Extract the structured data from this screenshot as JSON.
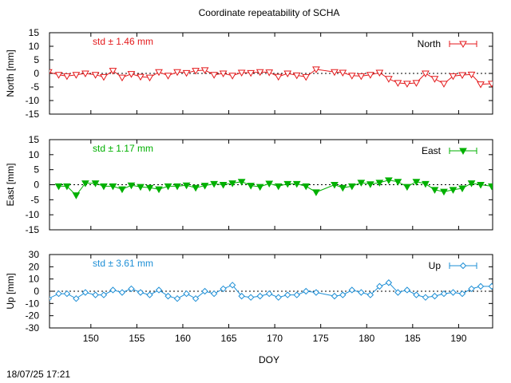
{
  "title": "Coordinate repeatability of SCHA",
  "timestamp": "18/07/25 17:21",
  "colors": {
    "north": "#e41a1c",
    "east": "#00b000",
    "up": "#1e8fd6",
    "axis": "#000000"
  },
  "chart_data": {
    "type": "line",
    "title": "Coordinate repeatability of SCHA",
    "xlabel": "DOY",
    "xlim": [
      145.5,
      193.7
    ],
    "xticks": [
      150,
      155,
      160,
      165,
      170,
      175,
      180,
      185,
      190
    ],
    "panels": [
      {
        "id": "north",
        "series_name": "North",
        "ylabel": "North [mm]",
        "std_label": "std ± 1.46 mm",
        "ylim": [
          -15,
          15
        ],
        "yticks": [
          15,
          10,
          5,
          0,
          -5,
          -10,
          -15
        ],
        "marker": "triangle-down-open",
        "x": [
          145.4,
          146.5,
          147.4,
          148.4,
          149.4,
          150.5,
          151.4,
          152.4,
          153.4,
          154.4,
          155.4,
          156.4,
          157.4,
          158.4,
          159.4,
          160.4,
          161.4,
          162.4,
          163.4,
          164.4,
          165.4,
          166.4,
          167.4,
          168.4,
          169.4,
          170.4,
          171.4,
          172.4,
          173.4,
          174.5,
          176.5,
          177.4,
          178.4,
          179.4,
          180.4,
          181.4,
          182.4,
          183.4,
          184.4,
          185.4,
          186.4,
          187.4,
          188.4,
          189.4,
          190.4,
          191.4,
          192.4,
          193.6
        ],
        "values": [
          0.5,
          -0.5,
          -1,
          -0.5,
          0,
          -0.5,
          -1.3,
          1,
          -1.5,
          -0.2,
          -1.2,
          -1.5,
          0.5,
          -0.8,
          0.5,
          0.2,
          1,
          1.2,
          -0.5,
          0,
          -0.8,
          0.3,
          0.2,
          0.5,
          0.4,
          -1.2,
          0,
          -0.7,
          -1.3,
          1.5,
          0.5,
          0.3,
          -0.8,
          -1,
          -0.5,
          0.3,
          -2,
          -3.5,
          -3.8,
          -3.5,
          0,
          -2,
          -3.8,
          -1,
          -0.6,
          -0.4,
          -4,
          -3.8
        ]
      },
      {
        "id": "east",
        "series_name": "East",
        "ylabel": "East [mm]",
        "std_label": "std ± 1.17 mm",
        "ylim": [
          -15,
          15
        ],
        "yticks": [
          15,
          10,
          5,
          0,
          -5,
          -10,
          -15
        ],
        "marker": "triangle-down-filled",
        "x": [
          146.5,
          147.4,
          148.4,
          149.4,
          150.5,
          151.4,
          152.4,
          153.4,
          154.4,
          155.4,
          156.4,
          157.4,
          158.4,
          159.4,
          160.4,
          161.4,
          162.4,
          163.4,
          164.4,
          165.4,
          166.4,
          167.4,
          168.4,
          169.4,
          170.4,
          171.4,
          172.4,
          173.4,
          174.5,
          176.5,
          177.4,
          178.4,
          179.4,
          180.4,
          181.4,
          182.4,
          183.4,
          184.4,
          185.4,
          186.4,
          187.4,
          188.4,
          189.4,
          190.4,
          191.4,
          192.4,
          193.6
        ],
        "values": [
          -0.5,
          -0.5,
          -3.5,
          0.5,
          0.5,
          -0.5,
          -0.5,
          -1.5,
          -0.2,
          -0.7,
          -1,
          -1.5,
          -0.5,
          -0.5,
          -0.2,
          -1,
          -0.3,
          0.3,
          0,
          0.5,
          1,
          -0.3,
          -0.7,
          0.4,
          -0.5,
          0.3,
          0.3,
          -0.5,
          -2.5,
          0,
          -1,
          -0.5,
          0.7,
          0.2,
          0.7,
          1.5,
          1,
          -0.7,
          1,
          0.3,
          -1.7,
          -2.3,
          -1.7,
          -1.2,
          0.5,
          0,
          -0.5
        ]
      },
      {
        "id": "up",
        "series_name": "Up",
        "ylabel": "Up [mm]",
        "std_label": "std ± 3.61 mm",
        "ylim": [
          -30,
          30
        ],
        "yticks": [
          30,
          20,
          10,
          0,
          -10,
          -20,
          -30
        ],
        "marker": "diamond-open",
        "x": [
          145.4,
          146.5,
          147.4,
          148.4,
          149.4,
          150.5,
          151.4,
          152.4,
          153.4,
          154.4,
          155.4,
          156.4,
          157.4,
          158.4,
          159.4,
          160.4,
          161.4,
          162.4,
          163.4,
          164.4,
          165.4,
          166.4,
          167.4,
          168.4,
          169.4,
          170.4,
          171.4,
          172.4,
          173.4,
          174.5,
          176.5,
          177.4,
          178.4,
          179.4,
          180.4,
          181.4,
          182.4,
          183.4,
          184.4,
          185.4,
          186.4,
          187.4,
          188.4,
          189.4,
          190.4,
          191.4,
          192.4,
          193.6
        ],
        "values": [
          -6,
          -2,
          -2,
          -6,
          -1,
          -3,
          -3,
          1,
          -1,
          2,
          -1,
          -3,
          1,
          -4,
          -6,
          -2,
          -6,
          0,
          -2,
          2,
          5,
          -4,
          -5,
          -4,
          -2,
          -5,
          -3,
          -3,
          0,
          -1,
          -4,
          -3,
          1,
          -1,
          -3,
          4,
          7,
          -1,
          1,
          -3,
          -5,
          -4,
          -2,
          -1,
          -2,
          2,
          4,
          4
        ]
      }
    ]
  }
}
